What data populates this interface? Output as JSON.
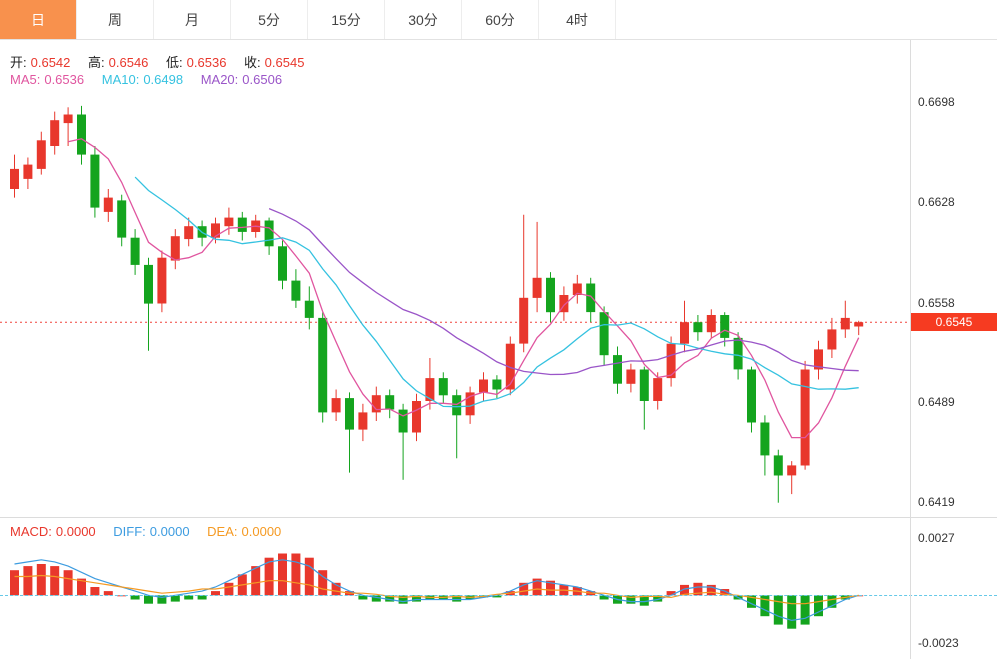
{
  "tabs": [
    {
      "label": "日",
      "active": true
    },
    {
      "label": "周",
      "active": false
    },
    {
      "label": "月",
      "active": false
    },
    {
      "label": "5分",
      "active": false
    },
    {
      "label": "15分",
      "active": false
    },
    {
      "label": "30分",
      "active": false
    },
    {
      "label": "60分",
      "active": false
    },
    {
      "label": "4时",
      "active": false
    }
  ],
  "main_legend": {
    "ohlc": [
      {
        "label": "开:",
        "value": "0.6542"
      },
      {
        "label": "高:",
        "value": "0.6546"
      },
      {
        "label": "低:",
        "value": "0.6536"
      },
      {
        "label": "收:",
        "value": "0.6545"
      }
    ],
    "ma": [
      {
        "label": "MA5:",
        "value": "0.6536"
      },
      {
        "label": "MA10:",
        "value": "0.6498"
      },
      {
        "label": "MA20:",
        "value": "0.6506"
      }
    ]
  },
  "y_axis": {
    "labels": [
      "0.6698",
      "0.6628",
      "0.6558",
      "0.6489",
      "0.6419"
    ],
    "price_tag": "0.6545"
  },
  "macd_legend": [
    {
      "label": "MACD:",
      "value": "0.0000"
    },
    {
      "label": "DIFF:",
      "value": "0.0000"
    },
    {
      "label": "DEA:",
      "value": "0.0000"
    }
  ],
  "macd_axis": {
    "top": "0.0027",
    "bottom": "-0.0023"
  },
  "colors": {
    "up": "#e8372c",
    "down": "#14a41e",
    "price_line": "#f0433c",
    "diff": "#3d9ce0",
    "dea": "#f59a23",
    "tag_bg": "#f63b21",
    "active_tab": "#f8914d"
  },
  "chart_data": [
    {
      "type": "candlestick",
      "timeframe": "日",
      "title": "",
      "ylim": [
        0.6409,
        0.6742
      ],
      "y_ticks": [
        0.6698,
        0.6628,
        0.6558,
        0.6489,
        0.6419
      ],
      "price_line": 0.6545,
      "legend_position": "top-left",
      "grid": false,
      "overlays": [
        {
          "name": "MA5",
          "period": 5,
          "color": "#e0559f"
        },
        {
          "name": "MA10",
          "period": 10,
          "color": "#35c2e0"
        },
        {
          "name": "MA20",
          "period": 20,
          "color": "#9a55c8"
        }
      ],
      "ohlc": {
        "open": [
          0.6638,
          0.6645,
          0.6652,
          0.6668,
          0.6684,
          0.669,
          0.6662,
          0.6622,
          0.663,
          0.6604,
          0.6585,
          0.6558,
          0.6588,
          0.6603,
          0.6612,
          0.6604,
          0.6612,
          0.6618,
          0.6608,
          0.6616,
          0.6598,
          0.6574,
          0.656,
          0.6548,
          0.6482,
          0.6492,
          0.647,
          0.6482,
          0.6494,
          0.6484,
          0.6468,
          0.649,
          0.6506,
          0.6494,
          0.648,
          0.6496,
          0.6505,
          0.6498,
          0.653,
          0.6562,
          0.6576,
          0.6552,
          0.6564,
          0.6572,
          0.6552,
          0.6522,
          0.6502,
          0.6512,
          0.649,
          0.6506,
          0.653,
          0.6545,
          0.6538,
          0.655,
          0.6534,
          0.6512,
          0.6475,
          0.6452,
          0.6438,
          0.6445,
          0.6512,
          0.6526,
          0.654,
          0.6542
        ],
        "high": [
          0.6662,
          0.666,
          0.6678,
          0.6692,
          0.6695,
          0.6696,
          0.6668,
          0.6638,
          0.6634,
          0.661,
          0.659,
          0.6595,
          0.661,
          0.6618,
          0.6616,
          0.6618,
          0.6625,
          0.6622,
          0.662,
          0.6618,
          0.6602,
          0.6582,
          0.657,
          0.6552,
          0.6498,
          0.6496,
          0.6488,
          0.65,
          0.6498,
          0.6488,
          0.6495,
          0.652,
          0.651,
          0.6498,
          0.65,
          0.651,
          0.6508,
          0.6535,
          0.662,
          0.6615,
          0.658,
          0.657,
          0.6578,
          0.6576,
          0.6556,
          0.6528,
          0.6516,
          0.6514,
          0.651,
          0.6535,
          0.656,
          0.655,
          0.6554,
          0.6552,
          0.6538,
          0.6514,
          0.648,
          0.6456,
          0.6448,
          0.6518,
          0.6532,
          0.6548,
          0.656,
          0.6546
        ],
        "low": [
          0.6632,
          0.6638,
          0.6648,
          0.6662,
          0.6668,
          0.6655,
          0.6618,
          0.6615,
          0.6598,
          0.6578,
          0.6525,
          0.6552,
          0.6582,
          0.6598,
          0.6598,
          0.66,
          0.6606,
          0.6602,
          0.6604,
          0.6592,
          0.6568,
          0.6555,
          0.654,
          0.6475,
          0.6476,
          0.644,
          0.6462,
          0.6476,
          0.6478,
          0.6435,
          0.6462,
          0.6484,
          0.6488,
          0.645,
          0.6474,
          0.649,
          0.6492,
          0.6494,
          0.6524,
          0.6552,
          0.6545,
          0.6546,
          0.6558,
          0.6545,
          0.6515,
          0.6495,
          0.6496,
          0.647,
          0.6484,
          0.65,
          0.6524,
          0.6532,
          0.6534,
          0.6528,
          0.6505,
          0.6468,
          0.6438,
          0.6419,
          0.6425,
          0.6442,
          0.6505,
          0.652,
          0.6534,
          0.6536
        ],
        "close": [
          0.6652,
          0.6655,
          0.6672,
          0.6686,
          0.669,
          0.6662,
          0.6625,
          0.6632,
          0.6604,
          0.6585,
          0.6558,
          0.659,
          0.6605,
          0.6612,
          0.6604,
          0.6614,
          0.6618,
          0.6608,
          0.6616,
          0.6598,
          0.6574,
          0.656,
          0.6548,
          0.6482,
          0.6492,
          0.647,
          0.6482,
          0.6494,
          0.6484,
          0.6468,
          0.649,
          0.6506,
          0.6494,
          0.648,
          0.6496,
          0.6505,
          0.6498,
          0.653,
          0.6562,
          0.6576,
          0.6552,
          0.6564,
          0.6572,
          0.6552,
          0.6522,
          0.6502,
          0.6512,
          0.649,
          0.6506,
          0.653,
          0.6545,
          0.6538,
          0.655,
          0.6534,
          0.6512,
          0.6475,
          0.6452,
          0.6438,
          0.6445,
          0.6512,
          0.6526,
          0.654,
          0.6548,
          0.6545
        ]
      }
    },
    {
      "type": "macd",
      "ylim": [
        -0.003,
        0.0037
      ],
      "y_ticks": [
        0.0027,
        -0.0023
      ],
      "diff": [
        0.0015,
        0.0016,
        0.0017,
        0.0016,
        0.0014,
        0.0011,
        0.0008,
        0.0006,
        0.0004,
        0.0002,
        0.0,
        -0.0001,
        0.0,
        0.0001,
        0.0002,
        0.0004,
        0.0007,
        0.001,
        0.0013,
        0.0016,
        0.0017,
        0.0016,
        0.0014,
        0.0009,
        0.0005,
        0.0002,
        0.0,
        -0.0001,
        -0.0002,
        -0.0003,
        -0.0002,
        -0.0002,
        -0.0002,
        -0.0002,
        -0.0002,
        -0.0001,
        0.0,
        0.0002,
        0.0005,
        0.0007,
        0.0006,
        0.0005,
        0.0004,
        0.0002,
        0.0,
        -0.0002,
        -0.0003,
        -0.0003,
        -0.0002,
        0.0,
        0.0003,
        0.0004,
        0.0004,
        0.0002,
        -0.0001,
        -0.0004,
        -0.0007,
        -0.001,
        -0.0012,
        -0.0011,
        -0.0008,
        -0.0005,
        -0.0002,
        0.0
      ],
      "histogram": [
        0.0012,
        0.0014,
        0.0015,
        0.0014,
        0.0012,
        0.0008,
        0.0004,
        0.0002,
        0.0,
        -0.0002,
        -0.0004,
        -0.0004,
        -0.0003,
        -0.0002,
        -0.0002,
        0.0002,
        0.0006,
        0.001,
        0.0014,
        0.0018,
        0.002,
        0.002,
        0.0018,
        0.0012,
        0.0006,
        0.0002,
        -0.0002,
        -0.0003,
        -0.0003,
        -0.0004,
        -0.0003,
        -0.0002,
        -0.0002,
        -0.0003,
        -0.0002,
        -0.0001,
        -0.0001,
        0.0002,
        0.0006,
        0.0008,
        0.0007,
        0.0005,
        0.0004,
        0.0002,
        -0.0002,
        -0.0004,
        -0.0004,
        -0.0005,
        -0.0003,
        0.0002,
        0.0005,
        0.0006,
        0.0005,
        0.0003,
        -0.0002,
        -0.0006,
        -0.001,
        -0.0014,
        -0.0016,
        -0.0014,
        -0.001,
        -0.0006,
        -0.0002,
        0.0
      ]
    }
  ]
}
